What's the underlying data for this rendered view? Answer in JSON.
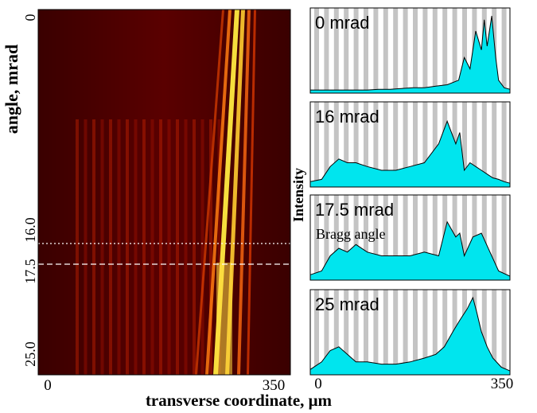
{
  "chart_data": [
    {
      "type": "heatmap",
      "title": "",
      "xlabel": "transverse coordinate, μm",
      "ylabel": "angle, mrad",
      "xlim": [
        0,
        350
      ],
      "ylim": [
        0,
        25
      ],
      "y_inverted": true,
      "x_tick_labels": [
        "0",
        "350"
      ],
      "y_tick_labels": [
        "0",
        "16.0",
        "17.5",
        "25.0"
      ],
      "y_ticks": [
        0,
        16.0,
        17.5,
        25.0
      ],
      "colormap": "hot",
      "reference_lines": [
        {
          "y": 16.0,
          "style": "dotted",
          "color": "#ffffff"
        },
        {
          "y": 17.5,
          "style": "dashed",
          "color": "#ffffff"
        }
      ]
    },
    {
      "type": "area",
      "panels": 4,
      "ylabel": "Intensity",
      "xlim": [
        0,
        350
      ],
      "x_tick_labels": [
        "0",
        "350"
      ],
      "fill_color": "#00e5ee",
      "stripe_color": "#c4c4c4",
      "series": [
        {
          "name": "0 mrad",
          "x": [
            0,
            20,
            40,
            60,
            80,
            100,
            120,
            140,
            160,
            180,
            200,
            220,
            240,
            260,
            270,
            280,
            290,
            300,
            305,
            310,
            318,
            325,
            330,
            340,
            350
          ],
          "y": [
            0.02,
            0.02,
            0.02,
            0.02,
            0.02,
            0.02,
            0.03,
            0.03,
            0.04,
            0.05,
            0.05,
            0.07,
            0.09,
            0.15,
            0.45,
            0.3,
            0.8,
            0.55,
            0.95,
            0.6,
            1.0,
            0.45,
            0.15,
            0.05,
            0.03
          ]
        },
        {
          "name": "16 mrad",
          "x": [
            0,
            20,
            35,
            50,
            65,
            80,
            100,
            125,
            150,
            175,
            200,
            225,
            240,
            255,
            262,
            270,
            280,
            290,
            300,
            310,
            320,
            330,
            340,
            350
          ],
          "y": [
            0.05,
            0.08,
            0.25,
            0.35,
            0.3,
            0.3,
            0.25,
            0.2,
            0.2,
            0.25,
            0.3,
            0.55,
            0.85,
            0.55,
            0.7,
            0.2,
            0.3,
            0.25,
            0.2,
            0.15,
            0.1,
            0.08,
            0.05,
            0.03
          ]
        },
        {
          "name": "17.5 mrad",
          "x": [
            0,
            20,
            35,
            50,
            65,
            80,
            100,
            125,
            150,
            175,
            200,
            225,
            240,
            255,
            262,
            270,
            285,
            300,
            315,
            330,
            350
          ],
          "y": [
            0.05,
            0.1,
            0.3,
            0.4,
            0.35,
            0.45,
            0.35,
            0.3,
            0.3,
            0.3,
            0.35,
            0.3,
            0.75,
            0.55,
            0.6,
            0.3,
            0.55,
            0.6,
            0.35,
            0.1,
            0.03
          ]
        },
        {
          "name": "25 mrad",
          "x": [
            0,
            20,
            35,
            50,
            65,
            80,
            100,
            125,
            150,
            175,
            200,
            220,
            235,
            250,
            262,
            275,
            285,
            292,
            300,
            310,
            320,
            335,
            350
          ],
          "y": [
            0.05,
            0.15,
            0.3,
            0.35,
            0.25,
            0.15,
            0.15,
            0.12,
            0.12,
            0.15,
            0.2,
            0.25,
            0.35,
            0.55,
            0.7,
            0.85,
            1.0,
            0.8,
            0.55,
            0.35,
            0.2,
            0.08,
            0.03
          ]
        }
      ],
      "annotations": [
        "Bragg angle"
      ]
    }
  ]
}
